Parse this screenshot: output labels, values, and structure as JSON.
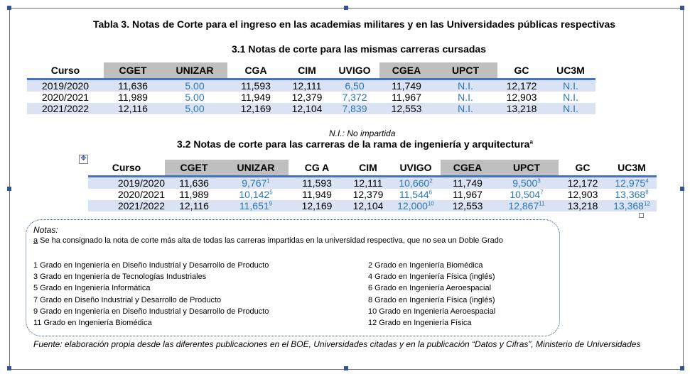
{
  "title": "Tabla 3. Notas de Corte para el ingreso en las academias militares y en las Universidades públicas respectivas",
  "subtitle1": "3.1 Notas de corte para las mismas carreras cursadas",
  "subtitle2": "3.2 Notas de corte para las carreras de la rama de ingeniería y arquitectura",
  "subtitle2_sup": "a",
  "ni_note": "N.I.: No impartida",
  "table1": {
    "headers": [
      "Curso",
      "CGET",
      "UNIZAR",
      "CGA",
      "CIM",
      "UVIGO",
      "CGEA",
      "UPCT",
      "GC",
      "UC3M"
    ],
    "rows": [
      {
        "curso": "2019/2020",
        "cget": "11,636",
        "unizar": "5.00",
        "cga": "11,593",
        "cim": "12,111",
        "uvigo": "6,50",
        "cgea": "11,749",
        "upct": "N.I.",
        "gc": "12,172",
        "uc3m": "N.I."
      },
      {
        "curso": "2020/2021",
        "cget": "11,989",
        "unizar": "5.00",
        "cga": "11,949",
        "cim": "12,379",
        "uvigo": "7,372",
        "cgea": "11,967",
        "upct": "N.I.",
        "gc": "12,903",
        "uc3m": "N.I."
      },
      {
        "curso": "2021/2022",
        "cget": "12,116",
        "unizar": "5,00",
        "cga": "12,169",
        "cim": "12,104",
        "uvigo": "7,839",
        "cgea": "12,553",
        "upct": "N.I.",
        "gc": "13,218",
        "uc3m": "N.I."
      }
    ]
  },
  "table2": {
    "headers": [
      "Curso",
      "CGET",
      "UNIZAR",
      "CG A",
      "CIM",
      "UVIGO",
      "CGEA",
      "UPCT",
      "GC",
      "UC3M"
    ],
    "rows": [
      {
        "curso": "2019/2020",
        "cget": "11,636",
        "unizar": "9,767",
        "unizar_sup": "1",
        "cga": "11,593",
        "cim": "12,111",
        "uvigo": "10,660",
        "uvigo_sup": "2",
        "cgea": "11,749",
        "upct": "9,500",
        "upct_sup": "3",
        "gc": "12,172",
        "uc3m": "12,975",
        "uc3m_sup": "4"
      },
      {
        "curso": "2020/2021",
        "cget": "11,989",
        "unizar": "10,142",
        "unizar_sup": "5",
        "cga": "11,949",
        "cim": "12,379",
        "uvigo": "11,544",
        "uvigo_sup": "6",
        "cgea": "11,967",
        "upct": "10,504",
        "upct_sup": "7",
        "gc": "12,903",
        "uc3m": "13,368",
        "uc3m_sup": "8"
      },
      {
        "curso": "2021/2022",
        "cget": "12,116",
        "unizar": "11,651",
        "unizar_sup": "9",
        "cga": "12,169",
        "cim": "12,104",
        "uvigo": "12,000",
        "uvigo_sup": "10",
        "cgea": "12,553",
        "upct": "12,867",
        "upct_sup": "11",
        "gc": "13,218",
        "uc3m": "13,368",
        "uc3m_sup": "12"
      }
    ]
  },
  "notes": {
    "title": "Notas:",
    "a_mark": "a",
    "a_text": " Se ha consignado la nota de corte más alta de todas las carreras impartidas  en la universidad respectiva, que no sea un Doble Grado",
    "left": [
      "1 Grado en Ingeniería en Diseño Industrial y Desarrollo de Producto",
      "3 Grado en Ingeniería de Tecnologías Industriales",
      "5 Grado en Ingeniería Informática",
      "7 Grado en Diseño Industrial y Desarrollo de Producto",
      "9 Grado en Ingeniería en Diseño Industrial y Desarrollo de Producto",
      "11 Grado en Ingeniería Biomédica"
    ],
    "right": [
      "2 Grado en Ingeniería Biomédica",
      "4 Grado en Ingeniería Física (inglés)",
      "6 Grado en Ingeniería Aeroespacial",
      "8 Grado en Ingeniería Física (inglés)",
      "10 Grado en Ingeniería Aeroespacial",
      "12 Grado en Ingeniería Física"
    ]
  },
  "source": "Fuente: elaboración  propia desde las diferentes publicaciones en el BOE, Universidades  citadas y en la publicación “Datos y Cifras”,  Ministerio de Universidades"
}
